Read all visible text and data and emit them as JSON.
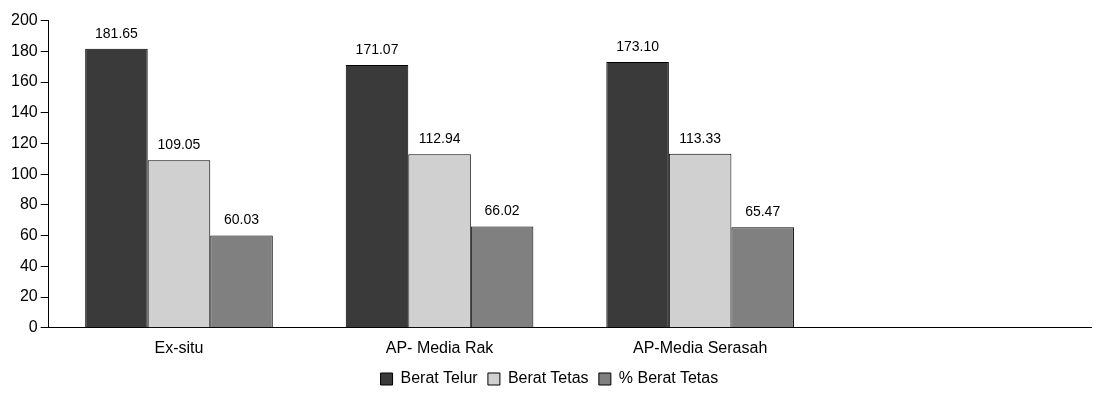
{
  "chart_data": {
    "type": "bar",
    "categories": [
      "Ex-situ",
      "AP- Media Rak",
      "AP-Media Serasah",
      null
    ],
    "series": [
      {
        "name": "Berat Telur",
        "color": "#3a3a3a",
        "values": [
          181.65,
          171.07,
          173.1,
          null
        ],
        "value_labels": [
          "181.65",
          "171.07",
          "173.10",
          null
        ]
      },
      {
        "name": "Berat Tetas",
        "color": "#d0d0d0",
        "values": [
          109.05,
          112.94,
          113.33,
          null
        ],
        "value_labels": [
          "109.05",
          "112.94",
          "113.33",
          null
        ]
      },
      {
        "name": "% Berat Tetas",
        "color": "#808080",
        "values": [
          60.03,
          66.02,
          65.47,
          null
        ],
        "value_labels": [
          "60.03",
          "66.02",
          "65.47",
          null
        ]
      }
    ],
    "ylim": [
      0,
      200
    ],
    "yticks": [
      0,
      20,
      40,
      60,
      80,
      100,
      120,
      140,
      160,
      180,
      200
    ],
    "grid": false,
    "legend": "bottom"
  }
}
